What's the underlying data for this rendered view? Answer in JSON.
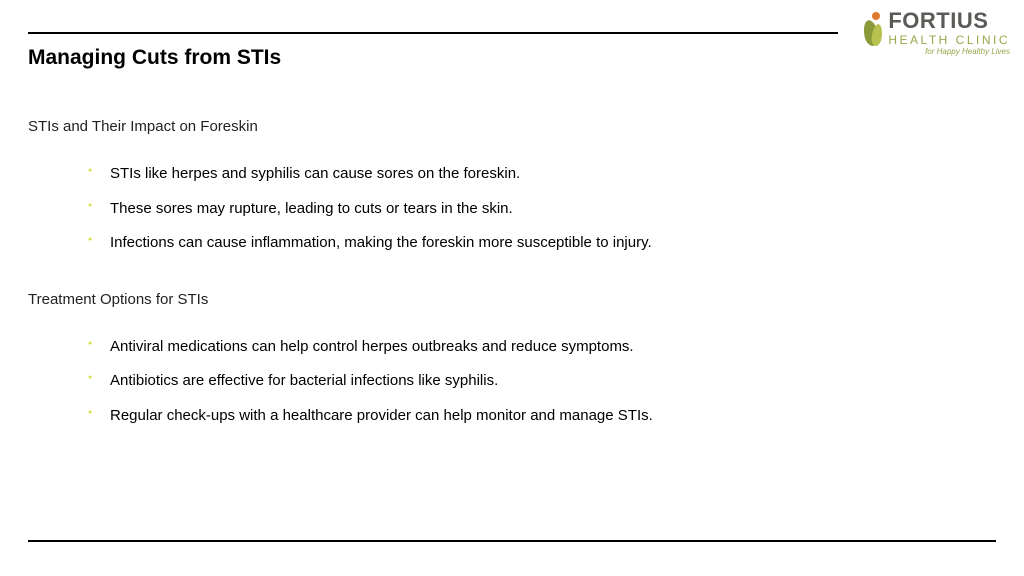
{
  "title": "Managing Cuts from STIs",
  "logo": {
    "brand": "FORTIUS",
    "sub": "HEALTH CLINIC",
    "tag": "for Happy Healthy Lives"
  },
  "sections": [
    {
      "heading": "STIs and Their Impact on Foreskin",
      "items": [
        "STIs like herpes and syphilis can cause sores on the foreskin.",
        "These sores may rupture, leading to cuts or tears in the skin.",
        "Infections can cause inflammation, making the foreskin more susceptible to injury."
      ]
    },
    {
      "heading": "Treatment Options for STIs",
      "items": [
        "Antiviral medications can help control herpes outbreaks and reduce symptoms.",
        "Antibiotics are effective for bacterial infections like syphilis.",
        "Regular check-ups with a healthcare provider can help monitor and manage STIs."
      ]
    }
  ],
  "colors": {
    "bullet": "#d7df47",
    "logo_green": "#9aa64a",
    "logo_gray": "#5a5a56"
  }
}
